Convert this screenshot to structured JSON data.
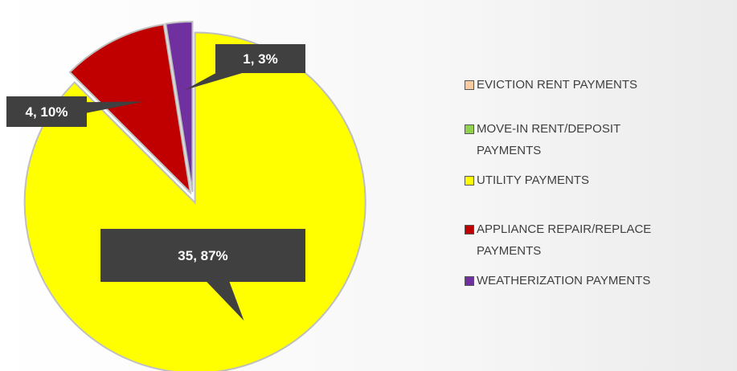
{
  "chart_data": {
    "type": "pie",
    "categories": [
      "EVICTION RENT PAYMENTS",
      "MOVE-IN RENT/DEPOSIT PAYMENTS",
      "UTILITY PAYMENTS",
      "APPLIANCE REPAIR/REPLACE PAYMENTS",
      "WEATHERIZATION PAYMENTS"
    ],
    "values": [
      0,
      0,
      35,
      4,
      1
    ],
    "value_labels": [
      null,
      null,
      "35, 87%",
      "4, 10%",
      "1, 3%"
    ],
    "colors": [
      "#f8cba0",
      "#92d050",
      "#ffff00",
      "#c00000",
      "#7030a0"
    ],
    "legend": "right"
  }
}
